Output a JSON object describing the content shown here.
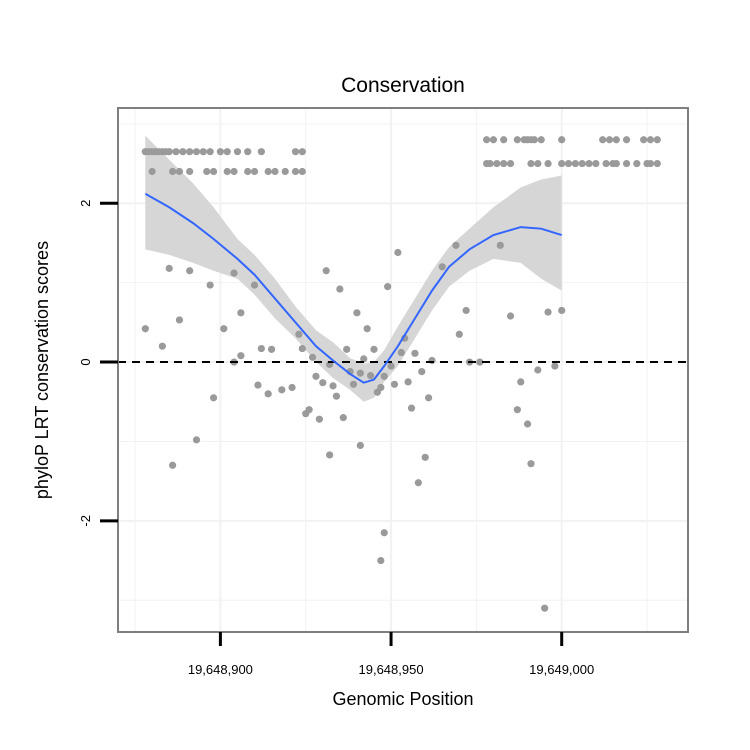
{
  "chart_data": {
    "type": "scatter",
    "title": "Conservation",
    "xlabel": "Genomic Position",
    "ylabel": "phyloP LRT conservation scores",
    "xlim": [
      19648870,
      19649037
    ],
    "ylim": [
      -3.4,
      3.2
    ],
    "x_ticks": [
      {
        "value": 19648900,
        "label": "19,648,900"
      },
      {
        "value": 19648950,
        "label": "19,648,950"
      },
      {
        "value": 19649000,
        "label": "19,649,000"
      }
    ],
    "y_ticks": [
      {
        "value": -2,
        "label": "-2"
      },
      {
        "value": 0,
        "label": "0"
      },
      {
        "value": 2,
        "label": "2"
      }
    ],
    "minor_x_gridlines": [
      19648875,
      19648925,
      19648975,
      19649025
    ],
    "minor_y_gridlines": [
      -3,
      -1,
      1,
      3
    ],
    "reference_line": {
      "y": 0,
      "style": "dashed"
    },
    "colors": {
      "points": "#9a9a9a",
      "smooth_line": "#3366ff",
      "confidence_band": "#d4d4d4",
      "panel_border": "#7f7f7f",
      "grid": "#f2f2f2"
    },
    "series": [
      {
        "name": "points",
        "points": [
          [
            19648878,
            2.65
          ],
          [
            19648879,
            2.65
          ],
          [
            19648880,
            2.65
          ],
          [
            19648881,
            2.65
          ],
          [
            19648882,
            2.65
          ],
          [
            19648883,
            2.65
          ],
          [
            19648884,
            2.65
          ],
          [
            19648885,
            2.65
          ],
          [
            19648887,
            2.65
          ],
          [
            19648889,
            2.65
          ],
          [
            19648891,
            2.65
          ],
          [
            19648893,
            2.65
          ],
          [
            19648895,
            2.65
          ],
          [
            19648897,
            2.65
          ],
          [
            19648900,
            2.65
          ],
          [
            19648902,
            2.65
          ],
          [
            19648905,
            2.65
          ],
          [
            19648908,
            2.65
          ],
          [
            19648912,
            2.65
          ],
          [
            19648922,
            2.65
          ],
          [
            19648924,
            2.65
          ],
          [
            19648880,
            2.4
          ],
          [
            19648886,
            2.4
          ],
          [
            19648888,
            2.4
          ],
          [
            19648891,
            2.4
          ],
          [
            19648896,
            2.4
          ],
          [
            19648898,
            2.4
          ],
          [
            19648902,
            2.4
          ],
          [
            19648904,
            2.4
          ],
          [
            19648908,
            2.4
          ],
          [
            19648910,
            2.4
          ],
          [
            19648914,
            2.4
          ],
          [
            19648916,
            2.4
          ],
          [
            19648919,
            2.4
          ],
          [
            19648922,
            2.4
          ],
          [
            19648924,
            2.4
          ],
          [
            19648978,
            2.8
          ],
          [
            19648980,
            2.8
          ],
          [
            19648983,
            2.8
          ],
          [
            19648987,
            2.8
          ],
          [
            19648989,
            2.8
          ],
          [
            19648990,
            2.8
          ],
          [
            19648991,
            2.8
          ],
          [
            19648992,
            2.8
          ],
          [
            19648994,
            2.8
          ],
          [
            19649000,
            2.8
          ],
          [
            19649012,
            2.8
          ],
          [
            19649014,
            2.8
          ],
          [
            19649016,
            2.8
          ],
          [
            19649019,
            2.8
          ],
          [
            19649024,
            2.8
          ],
          [
            19649026,
            2.8
          ],
          [
            19649028,
            2.8
          ],
          [
            19648978,
            2.5
          ],
          [
            19648979,
            2.5
          ],
          [
            19648981,
            2.5
          ],
          [
            19648983,
            2.5
          ],
          [
            19648985,
            2.5
          ],
          [
            19648991,
            2.5
          ],
          [
            19648993,
            2.5
          ],
          [
            19648996,
            2.5
          ],
          [
            19649000,
            2.5
          ],
          [
            19649002,
            2.5
          ],
          [
            19649004,
            2.5
          ],
          [
            19649006,
            2.5
          ],
          [
            19649008,
            2.5
          ],
          [
            19649010,
            2.5
          ],
          [
            19649013,
            2.5
          ],
          [
            19649015,
            2.5
          ],
          [
            19649016,
            2.5
          ],
          [
            19649019,
            2.5
          ],
          [
            19649022,
            2.5
          ],
          [
            19649025,
            2.5
          ],
          [
            19649026,
            2.5
          ],
          [
            19649028,
            2.5
          ],
          [
            19648878,
            0.42
          ],
          [
            19648883,
            0.2
          ],
          [
            19648885,
            1.18
          ],
          [
            19648886,
            -1.3
          ],
          [
            19648888,
            0.53
          ],
          [
            19648891,
            1.15
          ],
          [
            19648893,
            -0.98
          ],
          [
            19648897,
            0.97
          ],
          [
            19648898,
            -0.45
          ],
          [
            19648901,
            0.42
          ],
          [
            19648904,
            0
          ],
          [
            19648904,
            1.12
          ],
          [
            19648906,
            0.08
          ],
          [
            19648906,
            0.62
          ],
          [
            19648910,
            0.97
          ],
          [
            19648911,
            -0.29
          ],
          [
            19648912,
            0.17
          ],
          [
            19648914,
            -0.4
          ],
          [
            19648915,
            0.16
          ],
          [
            19648918,
            -0.35
          ],
          [
            19648921,
            -0.32
          ],
          [
            19648923,
            0.35
          ],
          [
            19648924,
            0.17
          ],
          [
            19648925,
            -0.65
          ],
          [
            19648926,
            -0.6
          ],
          [
            19648927,
            0.06
          ],
          [
            19648928,
            -0.18
          ],
          [
            19648929,
            -0.72
          ],
          [
            19648930,
            -0.26
          ],
          [
            19648931,
            1.15
          ],
          [
            19648932,
            -0.03
          ],
          [
            19648932,
            -1.17
          ],
          [
            19648933,
            -0.3
          ],
          [
            19648934,
            -0.43
          ],
          [
            19648935,
            0.92
          ],
          [
            19648936,
            -0.7
          ],
          [
            19648937,
            0.16
          ],
          [
            19648938,
            -0.12
          ],
          [
            19648939,
            -0.28
          ],
          [
            19648940,
            0.62
          ],
          [
            19648941,
            -1.05
          ],
          [
            19648941,
            -0.14
          ],
          [
            19648942,
            0.04
          ],
          [
            19648943,
            0.42
          ],
          [
            19648944,
            -0.17
          ],
          [
            19648945,
            0.16
          ],
          [
            19648946,
            -0.38
          ],
          [
            19648947,
            -0.32
          ],
          [
            19648947,
            -2.5
          ],
          [
            19648948,
            -2.15
          ],
          [
            19648948,
            -0.18
          ],
          [
            19648949,
            0.95
          ],
          [
            19648950,
            -0.05
          ],
          [
            19648951,
            -0.28
          ],
          [
            19648952,
            1.38
          ],
          [
            19648953,
            0.12
          ],
          [
            19648954,
            0.3
          ],
          [
            19648955,
            -0.25
          ],
          [
            19648956,
            -0.58
          ],
          [
            19648957,
            0.11
          ],
          [
            19648958,
            -1.52
          ],
          [
            19648959,
            -0.12
          ],
          [
            19648960,
            -1.2
          ],
          [
            19648961,
            -0.45
          ],
          [
            19648962,
            0.02
          ],
          [
            19648965,
            1.2
          ],
          [
            19648969,
            1.47
          ],
          [
            19648970,
            0.35
          ],
          [
            19648972,
            0.65
          ],
          [
            19648973,
            0
          ],
          [
            19648976,
            0
          ],
          [
            19648982,
            1.47
          ],
          [
            19648985,
            0.58
          ],
          [
            19648987,
            -0.6
          ],
          [
            19648988,
            -0.25
          ],
          [
            19648990,
            -0.78
          ],
          [
            19648991,
            -1.28
          ],
          [
            19648993,
            -0.1
          ],
          [
            19648995,
            -3.1
          ],
          [
            19648996,
            0.63
          ],
          [
            19648998,
            -0.05
          ],
          [
            19649000,
            0.65
          ]
        ]
      },
      {
        "name": "loess_fit",
        "line": [
          [
            19648878,
            2.12
          ],
          [
            19648885,
            1.95
          ],
          [
            19648892,
            1.75
          ],
          [
            19648898,
            1.55
          ],
          [
            19648905,
            1.3
          ],
          [
            19648910,
            1.1
          ],
          [
            19648916,
            0.8
          ],
          [
            19648922,
            0.5
          ],
          [
            19648928,
            0.2
          ],
          [
            19648933,
            0.02
          ],
          [
            19648938,
            -0.15
          ],
          [
            19648942,
            -0.26
          ],
          [
            19648945,
            -0.22
          ],
          [
            19648948,
            -0.05
          ],
          [
            19648952,
            0.2
          ],
          [
            19648957,
            0.55
          ],
          [
            19648962,
            0.9
          ],
          [
            19648967,
            1.2
          ],
          [
            19648973,
            1.42
          ],
          [
            19648980,
            1.6
          ],
          [
            19648988,
            1.7
          ],
          [
            19648994,
            1.68
          ],
          [
            19649000,
            1.6
          ]
        ],
        "band_upper": [
          [
            19648878,
            2.85
          ],
          [
            19648885,
            2.55
          ],
          [
            19648892,
            2.25
          ],
          [
            19648898,
            1.95
          ],
          [
            19648905,
            1.55
          ],
          [
            19648910,
            1.35
          ],
          [
            19648916,
            1.05
          ],
          [
            19648922,
            0.7
          ],
          [
            19648928,
            0.4
          ],
          [
            19648933,
            0.25
          ],
          [
            19648938,
            0.05
          ],
          [
            19648942,
            -0.02
          ],
          [
            19648945,
            0
          ],
          [
            19648948,
            0.15
          ],
          [
            19648952,
            0.45
          ],
          [
            19648957,
            0.8
          ],
          [
            19648962,
            1.15
          ],
          [
            19648967,
            1.45
          ],
          [
            19648973,
            1.68
          ],
          [
            19648980,
            1.95
          ],
          [
            19648988,
            2.2
          ],
          [
            19648994,
            2.3
          ],
          [
            19649000,
            2.35
          ]
        ],
        "band_lower": [
          [
            19648878,
            1.42
          ],
          [
            19648885,
            1.35
          ],
          [
            19648892,
            1.25
          ],
          [
            19648898,
            1.15
          ],
          [
            19648905,
            1.05
          ],
          [
            19648910,
            0.85
          ],
          [
            19648916,
            0.55
          ],
          [
            19648922,
            0.3
          ],
          [
            19648928,
            0
          ],
          [
            19648933,
            -0.2
          ],
          [
            19648938,
            -0.35
          ],
          [
            19648942,
            -0.5
          ],
          [
            19648945,
            -0.45
          ],
          [
            19648948,
            -0.25
          ],
          [
            19648952,
            -0.05
          ],
          [
            19648957,
            0.3
          ],
          [
            19648962,
            0.65
          ],
          [
            19648967,
            0.95
          ],
          [
            19648973,
            1.15
          ],
          [
            19648980,
            1.3
          ],
          [
            19648988,
            1.25
          ],
          [
            19648994,
            1.05
          ],
          [
            19649000,
            0.9
          ]
        ]
      }
    ]
  }
}
